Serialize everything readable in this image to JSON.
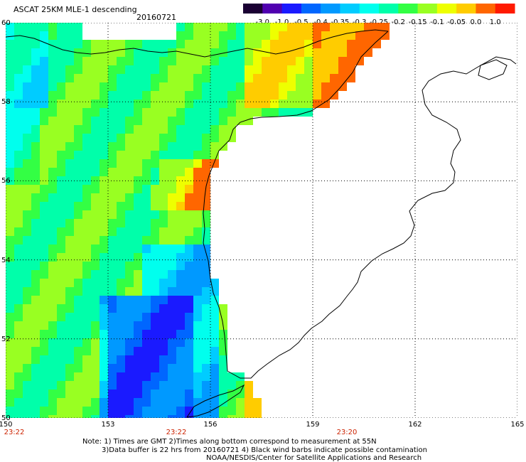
{
  "header": {
    "title": "ASCAT 25KM MLE-1 descending",
    "date": "20160721"
  },
  "colorbar": {
    "labels": [
      "-3.0",
      "-1.0",
      "-0.5",
      "-0.4",
      "-0.35",
      "-0.3",
      "-0.25",
      "-0.2",
      "-0.15",
      "-0.1",
      "-0.05",
      "0.0",
      "1.0"
    ],
    "colors": [
      "#1a0033",
      "#5000b0",
      "#1a1aff",
      "#0066ff",
      "#0099ff",
      "#00ccff",
      "#00ffee",
      "#00ffaa",
      "#33ff44",
      "#99ff22",
      "#eeff00",
      "#ffcc00",
      "#ff6600",
      "#ff1a00"
    ]
  },
  "axes": {
    "lat_labels": [
      "60",
      "58",
      "56",
      "54",
      "52",
      "50"
    ],
    "lon_labels": [
      "150",
      "153",
      "156",
      "159",
      "162",
      "165"
    ],
    "time_labels": [
      {
        "lon": "150",
        "text": "23:22"
      },
      {
        "lon": "155",
        "text": "23:22"
      },
      {
        "lon": "160",
        "text": "23:20"
      }
    ]
  },
  "notes": {
    "line1": "Note: 1) Times are GMT 2)Times along bottom correspond to measurement at 55N",
    "line2": "3)Data buffer is 22 hrs from 20160721 4) Black wind barbs indicate possible contamination",
    "line3": "NOAA/NESDIS/Center for Satellite Applications and Research"
  }
}
